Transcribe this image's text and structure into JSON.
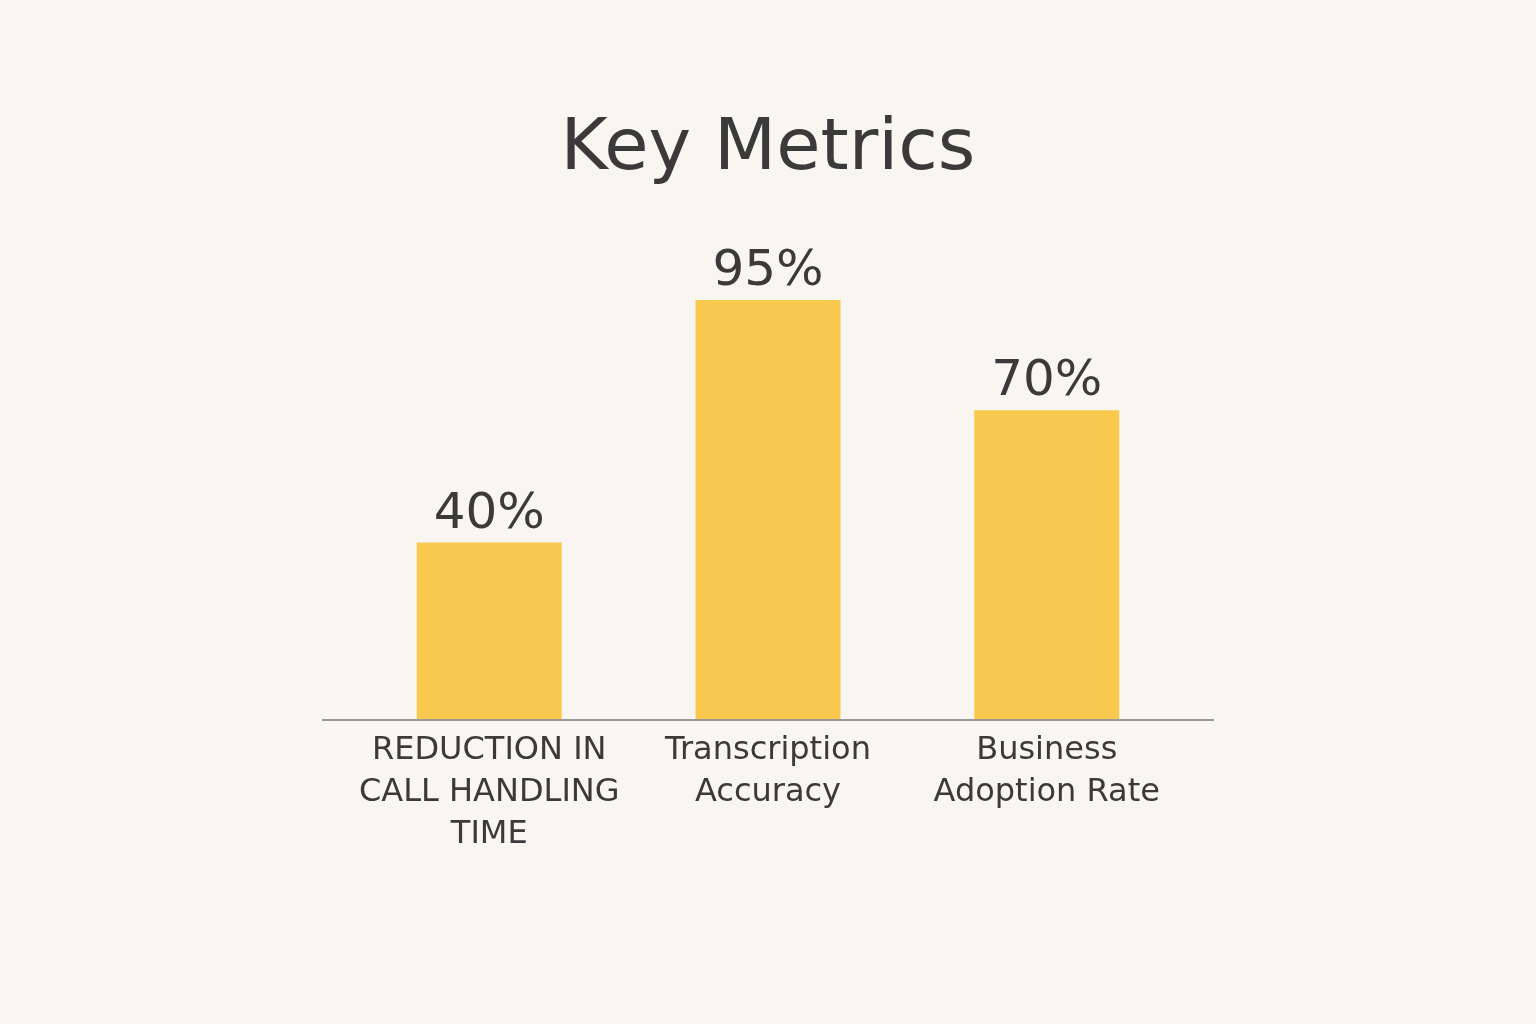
{
  "chart_data": {
    "type": "bar",
    "title": "Key Metrics",
    "categories": [
      "REDUCTION IN CALL HANDLING TIME",
      "Transcription Accuracy",
      "Business Adoption Rate"
    ],
    "values": [
      40,
      95,
      70
    ],
    "value_labels": [
      "40%",
      "95%",
      "70%"
    ],
    "color": "#f9c84e",
    "grid": false,
    "legend": false
  }
}
